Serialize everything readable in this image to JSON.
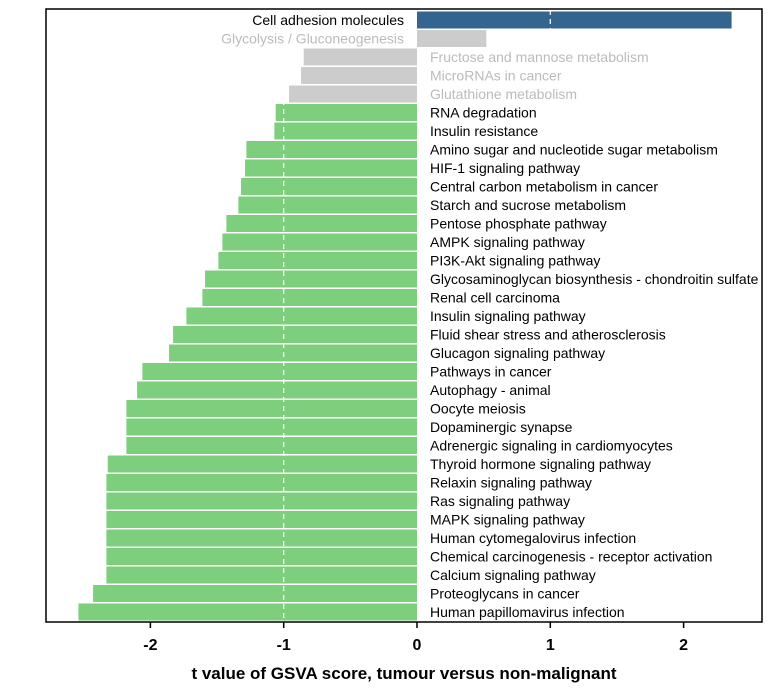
{
  "chart_data": {
    "type": "bar",
    "orientation": "horizontal",
    "xlabel": "t value of GSVA score, tumour versus non-malignant",
    "xlim": [
      -2.55,
      2.6
    ],
    "xticks": [
      -2,
      -1,
      0,
      1,
      2
    ],
    "reference_lines": [
      -1,
      1
    ],
    "colors": {
      "up": "#34658f",
      "down": "#7dcf7e",
      "nonsignificant": "#cccccc",
      "label_nonsignificant": "#bbbbbb",
      "label_default": "#000000"
    },
    "bars": [
      {
        "label": "Cell adhesion molecules",
        "value": 2.36,
        "group": "up"
      },
      {
        "label": "Glycolysis / Gluconeogenesis",
        "value": 0.52,
        "group": "nonsignificant"
      },
      {
        "label": "Fructose and mannose metabolism",
        "value": -0.85,
        "group": "nonsignificant"
      },
      {
        "label": "MicroRNAs in cancer",
        "value": -0.87,
        "group": "nonsignificant"
      },
      {
        "label": "Glutathione metabolism",
        "value": -0.96,
        "group": "nonsignificant"
      },
      {
        "label": "RNA degradation",
        "value": -1.06,
        "group": "down"
      },
      {
        "label": "Insulin resistance",
        "value": -1.07,
        "group": "down"
      },
      {
        "label": "Amino sugar and nucleotide sugar metabolism",
        "value": -1.28,
        "group": "down"
      },
      {
        "label": "HIF-1 signaling pathway",
        "value": -1.29,
        "group": "down"
      },
      {
        "label": "Central carbon metabolism in cancer",
        "value": -1.32,
        "group": "down"
      },
      {
        "label": "Starch and sucrose metabolism",
        "value": -1.34,
        "group": "down"
      },
      {
        "label": "Pentose phosphate pathway",
        "value": -1.43,
        "group": "down"
      },
      {
        "label": "AMPK signaling pathway",
        "value": -1.46,
        "group": "down"
      },
      {
        "label": "PI3K-Akt signaling pathway",
        "value": -1.49,
        "group": "down"
      },
      {
        "label": "Glycosaminoglycan biosynthesis - chondroitin sulfate",
        "value": -1.59,
        "group": "down"
      },
      {
        "label": "Renal cell carcinoma",
        "value": -1.61,
        "group": "down"
      },
      {
        "label": "Insulin signaling pathway",
        "value": -1.73,
        "group": "down"
      },
      {
        "label": "Fluid shear stress and atherosclerosis",
        "value": -1.83,
        "group": "down"
      },
      {
        "label": "Glucagon signaling pathway",
        "value": -1.86,
        "group": "down"
      },
      {
        "label": "Pathways in cancer",
        "value": -2.06,
        "group": "down"
      },
      {
        "label": "Autophagy - animal",
        "value": -2.1,
        "group": "down"
      },
      {
        "label": "Oocyte meiosis",
        "value": -2.18,
        "group": "down"
      },
      {
        "label": "Dopaminergic synapse",
        "value": -2.18,
        "group": "down"
      },
      {
        "label": "Adrenergic signaling in cardiomyocytes",
        "value": -2.18,
        "group": "down"
      },
      {
        "label": "Thyroid hormone signaling pathway",
        "value": -2.32,
        "group": "down"
      },
      {
        "label": "Relaxin signaling pathway",
        "value": -2.33,
        "group": "down"
      },
      {
        "label": "Ras signaling pathway",
        "value": -2.33,
        "group": "down"
      },
      {
        "label": "MAPK signaling pathway",
        "value": -2.33,
        "group": "down"
      },
      {
        "label": "Human cytomegalovirus infection",
        "value": -2.33,
        "group": "down"
      },
      {
        "label": "Chemical carcinogenesis - receptor activation",
        "value": -2.33,
        "group": "down"
      },
      {
        "label": "Calcium signaling pathway",
        "value": -2.33,
        "group": "down"
      },
      {
        "label": "Proteoglycans in cancer",
        "value": -2.43,
        "group": "down"
      },
      {
        "label": "Human papillomavirus infection",
        "value": -2.54,
        "group": "down"
      }
    ]
  }
}
